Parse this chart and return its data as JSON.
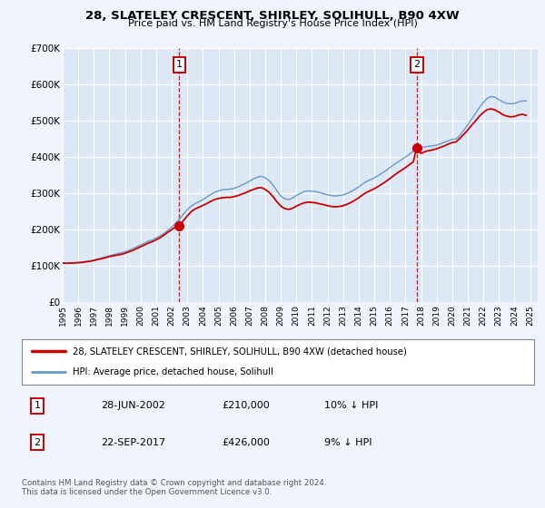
{
  "title": "28, SLATELEY CRESCENT, SHIRLEY, SOLIHULL, B90 4XW",
  "subtitle": "Price paid vs. HM Land Registry's House Price Index (HPI)",
  "background_color": "#f0f4ff",
  "plot_bg_color": "#dce8f5",
  "grid_color": "#ffffff",
  "ylim": [
    0,
    700000
  ],
  "yticks": [
    0,
    100000,
    200000,
    300000,
    400000,
    500000,
    600000,
    700000
  ],
  "ytick_labels": [
    "£0",
    "£100K",
    "£200K",
    "£300K",
    "£400K",
    "£500K",
    "£600K",
    "£700K"
  ],
  "xlim_start": 1995.0,
  "xlim_end": 2025.5,
  "xticks": [
    1995,
    1996,
    1997,
    1998,
    1999,
    2000,
    2001,
    2002,
    2003,
    2004,
    2005,
    2006,
    2007,
    2008,
    2009,
    2010,
    2011,
    2012,
    2013,
    2014,
    2015,
    2016,
    2017,
    2018,
    2019,
    2020,
    2021,
    2022,
    2023,
    2024,
    2025
  ],
  "sale1_x": 2002.49,
  "sale1_y": 210000,
  "sale1_label": "1",
  "sale1_date": "28-JUN-2002",
  "sale1_price": "£210,000",
  "sale1_hpi": "10% ↓ HPI",
  "sale2_x": 2017.73,
  "sale2_y": 426000,
  "sale2_label": "2",
  "sale2_date": "22-SEP-2017",
  "sale2_price": "£426,000",
  "sale2_hpi": "9% ↓ HPI",
  "legend_line1": "28, SLATELEY CRESCENT, SHIRLEY, SOLIHULL, B90 4XW (detached house)",
  "legend_line2": "HPI: Average price, detached house, Solihull",
  "footer1": "Contains HM Land Registry data © Crown copyright and database right 2024.",
  "footer2": "This data is licensed under the Open Government Licence v3.0.",
  "price_color": "#cc0000",
  "hpi_color": "#6699cc",
  "dashed_line_color": "#cc0000",
  "hpi_data": [
    [
      1995.0,
      108000
    ],
    [
      1995.25,
      107000
    ],
    [
      1995.5,
      107500
    ],
    [
      1995.75,
      108000
    ],
    [
      1996.0,
      110000
    ],
    [
      1996.25,
      111000
    ],
    [
      1996.5,
      112000
    ],
    [
      1996.75,
      114000
    ],
    [
      1997.0,
      116000
    ],
    [
      1997.25,
      119000
    ],
    [
      1997.5,
      122000
    ],
    [
      1997.75,
      125000
    ],
    [
      1998.0,
      128000
    ],
    [
      1998.25,
      131000
    ],
    [
      1998.5,
      134000
    ],
    [
      1998.75,
      136000
    ],
    [
      1999.0,
      139000
    ],
    [
      1999.25,
      143000
    ],
    [
      1999.5,
      148000
    ],
    [
      1999.75,
      153000
    ],
    [
      2000.0,
      158000
    ],
    [
      2000.25,
      163000
    ],
    [
      2000.5,
      168000
    ],
    [
      2000.75,
      172000
    ],
    [
      2001.0,
      177000
    ],
    [
      2001.25,
      183000
    ],
    [
      2001.5,
      190000
    ],
    [
      2001.75,
      198000
    ],
    [
      2002.0,
      207000
    ],
    [
      2002.25,
      218000
    ],
    [
      2002.5,
      230000
    ],
    [
      2002.75,
      243000
    ],
    [
      2003.0,
      255000
    ],
    [
      2003.25,
      265000
    ],
    [
      2003.5,
      272000
    ],
    [
      2003.75,
      277000
    ],
    [
      2004.0,
      283000
    ],
    [
      2004.25,
      290000
    ],
    [
      2004.5,
      297000
    ],
    [
      2004.75,
      303000
    ],
    [
      2005.0,
      307000
    ],
    [
      2005.25,
      310000
    ],
    [
      2005.5,
      311000
    ],
    [
      2005.75,
      312000
    ],
    [
      2006.0,
      314000
    ],
    [
      2006.25,
      318000
    ],
    [
      2006.5,
      323000
    ],
    [
      2006.75,
      328000
    ],
    [
      2007.0,
      334000
    ],
    [
      2007.25,
      340000
    ],
    [
      2007.5,
      345000
    ],
    [
      2007.75,
      347000
    ],
    [
      2008.0,
      343000
    ],
    [
      2008.25,
      335000
    ],
    [
      2008.5,
      323000
    ],
    [
      2008.75,
      307000
    ],
    [
      2009.0,
      293000
    ],
    [
      2009.25,
      285000
    ],
    [
      2009.5,
      283000
    ],
    [
      2009.75,
      287000
    ],
    [
      2010.0,
      294000
    ],
    [
      2010.25,
      300000
    ],
    [
      2010.5,
      305000
    ],
    [
      2010.75,
      307000
    ],
    [
      2011.0,
      306000
    ],
    [
      2011.25,
      305000
    ],
    [
      2011.5,
      302000
    ],
    [
      2011.75,
      299000
    ],
    [
      2012.0,
      296000
    ],
    [
      2012.25,
      294000
    ],
    [
      2012.5,
      293000
    ],
    [
      2012.75,
      294000
    ],
    [
      2013.0,
      296000
    ],
    [
      2013.25,
      300000
    ],
    [
      2013.5,
      305000
    ],
    [
      2013.75,
      311000
    ],
    [
      2014.0,
      318000
    ],
    [
      2014.25,
      326000
    ],
    [
      2014.5,
      333000
    ],
    [
      2014.75,
      338000
    ],
    [
      2015.0,
      343000
    ],
    [
      2015.25,
      349000
    ],
    [
      2015.5,
      356000
    ],
    [
      2015.75,
      363000
    ],
    [
      2016.0,
      371000
    ],
    [
      2016.25,
      379000
    ],
    [
      2016.5,
      386000
    ],
    [
      2016.75,
      393000
    ],
    [
      2017.0,
      400000
    ],
    [
      2017.25,
      408000
    ],
    [
      2017.5,
      416000
    ],
    [
      2017.75,
      422000
    ],
    [
      2018.0,
      426000
    ],
    [
      2018.25,
      428000
    ],
    [
      2018.5,
      430000
    ],
    [
      2018.75,
      431000
    ],
    [
      2019.0,
      433000
    ],
    [
      2019.25,
      437000
    ],
    [
      2019.5,
      441000
    ],
    [
      2019.75,
      445000
    ],
    [
      2020.0,
      449000
    ],
    [
      2020.25,
      450000
    ],
    [
      2020.5,
      460000
    ],
    [
      2020.75,
      475000
    ],
    [
      2021.0,
      489000
    ],
    [
      2021.25,
      505000
    ],
    [
      2021.5,
      521000
    ],
    [
      2021.75,
      537000
    ],
    [
      2022.0,
      551000
    ],
    [
      2022.25,
      562000
    ],
    [
      2022.5,
      567000
    ],
    [
      2022.75,
      565000
    ],
    [
      2023.0,
      558000
    ],
    [
      2023.25,
      552000
    ],
    [
      2023.5,
      548000
    ],
    [
      2023.75,
      547000
    ],
    [
      2024.0,
      548000
    ],
    [
      2024.25,
      552000
    ],
    [
      2024.5,
      555000
    ],
    [
      2024.75,
      555000
    ]
  ],
  "price_data": [
    [
      1995.0,
      108000
    ],
    [
      1995.25,
      107500
    ],
    [
      1995.5,
      108000
    ],
    [
      1995.75,
      108500
    ],
    [
      1996.0,
      109000
    ],
    [
      1996.25,
      110000
    ],
    [
      1996.5,
      111500
    ],
    [
      1996.75,
      113000
    ],
    [
      1997.0,
      115000
    ],
    [
      1997.25,
      118000
    ],
    [
      1997.5,
      120000
    ],
    [
      1997.75,
      123000
    ],
    [
      1998.0,
      126000
    ],
    [
      1998.25,
      128000
    ],
    [
      1998.5,
      130000
    ],
    [
      1998.75,
      132000
    ],
    [
      1999.0,
      135000
    ],
    [
      1999.25,
      139000
    ],
    [
      1999.5,
      143000
    ],
    [
      1999.75,
      148000
    ],
    [
      2000.0,
      153000
    ],
    [
      2000.25,
      158000
    ],
    [
      2000.5,
      163000
    ],
    [
      2000.75,
      167000
    ],
    [
      2001.0,
      172000
    ],
    [
      2001.25,
      178000
    ],
    [
      2001.5,
      185000
    ],
    [
      2001.75,
      193000
    ],
    [
      2002.0,
      200000
    ],
    [
      2002.25,
      208000
    ],
    [
      2002.49,
      210000
    ],
    [
      2002.75,
      225000
    ],
    [
      2003.0,
      238000
    ],
    [
      2003.25,
      250000
    ],
    [
      2003.5,
      257000
    ],
    [
      2003.75,
      262000
    ],
    [
      2004.0,
      267000
    ],
    [
      2004.25,
      272000
    ],
    [
      2004.5,
      278000
    ],
    [
      2004.75,
      283000
    ],
    [
      2005.0,
      286000
    ],
    [
      2005.25,
      288000
    ],
    [
      2005.5,
      289000
    ],
    [
      2005.75,
      289000
    ],
    [
      2006.0,
      291000
    ],
    [
      2006.25,
      294000
    ],
    [
      2006.5,
      298000
    ],
    [
      2006.75,
      302000
    ],
    [
      2007.0,
      307000
    ],
    [
      2007.25,
      311000
    ],
    [
      2007.5,
      315000
    ],
    [
      2007.75,
      316000
    ],
    [
      2008.0,
      311000
    ],
    [
      2008.25,
      303000
    ],
    [
      2008.5,
      291000
    ],
    [
      2008.75,
      277000
    ],
    [
      2009.0,
      265000
    ],
    [
      2009.25,
      258000
    ],
    [
      2009.5,
      256000
    ],
    [
      2009.75,
      259000
    ],
    [
      2010.0,
      265000
    ],
    [
      2010.25,
      270000
    ],
    [
      2010.5,
      274000
    ],
    [
      2010.75,
      276000
    ],
    [
      2011.0,
      275000
    ],
    [
      2011.25,
      274000
    ],
    [
      2011.5,
      271000
    ],
    [
      2011.75,
      269000
    ],
    [
      2012.0,
      266000
    ],
    [
      2012.25,
      264000
    ],
    [
      2012.5,
      263000
    ],
    [
      2012.75,
      264000
    ],
    [
      2013.0,
      266000
    ],
    [
      2013.25,
      270000
    ],
    [
      2013.5,
      275000
    ],
    [
      2013.75,
      281000
    ],
    [
      2014.0,
      288000
    ],
    [
      2014.25,
      296000
    ],
    [
      2014.5,
      303000
    ],
    [
      2014.75,
      308000
    ],
    [
      2015.0,
      313000
    ],
    [
      2015.25,
      319000
    ],
    [
      2015.5,
      326000
    ],
    [
      2015.75,
      333000
    ],
    [
      2016.0,
      341000
    ],
    [
      2016.25,
      349000
    ],
    [
      2016.5,
      357000
    ],
    [
      2016.75,
      364000
    ],
    [
      2017.0,
      371000
    ],
    [
      2017.25,
      379000
    ],
    [
      2017.5,
      387000
    ],
    [
      2017.73,
      426000
    ],
    [
      2018.0,
      410000
    ],
    [
      2018.25,
      415000
    ],
    [
      2018.5,
      418000
    ],
    [
      2018.75,
      420000
    ],
    [
      2019.0,
      423000
    ],
    [
      2019.25,
      427000
    ],
    [
      2019.5,
      431000
    ],
    [
      2019.75,
      436000
    ],
    [
      2020.0,
      440000
    ],
    [
      2020.25,
      442000
    ],
    [
      2020.5,
      452000
    ],
    [
      2020.75,
      463000
    ],
    [
      2021.0,
      475000
    ],
    [
      2021.25,
      488000
    ],
    [
      2021.5,
      500000
    ],
    [
      2021.75,
      513000
    ],
    [
      2022.0,
      523000
    ],
    [
      2022.25,
      531000
    ],
    [
      2022.5,
      533000
    ],
    [
      2022.75,
      530000
    ],
    [
      2023.0,
      524000
    ],
    [
      2023.25,
      517000
    ],
    [
      2023.5,
      513000
    ],
    [
      2023.75,
      511000
    ],
    [
      2024.0,
      512000
    ],
    [
      2024.25,
      516000
    ],
    [
      2024.5,
      518000
    ],
    [
      2024.75,
      515000
    ]
  ]
}
